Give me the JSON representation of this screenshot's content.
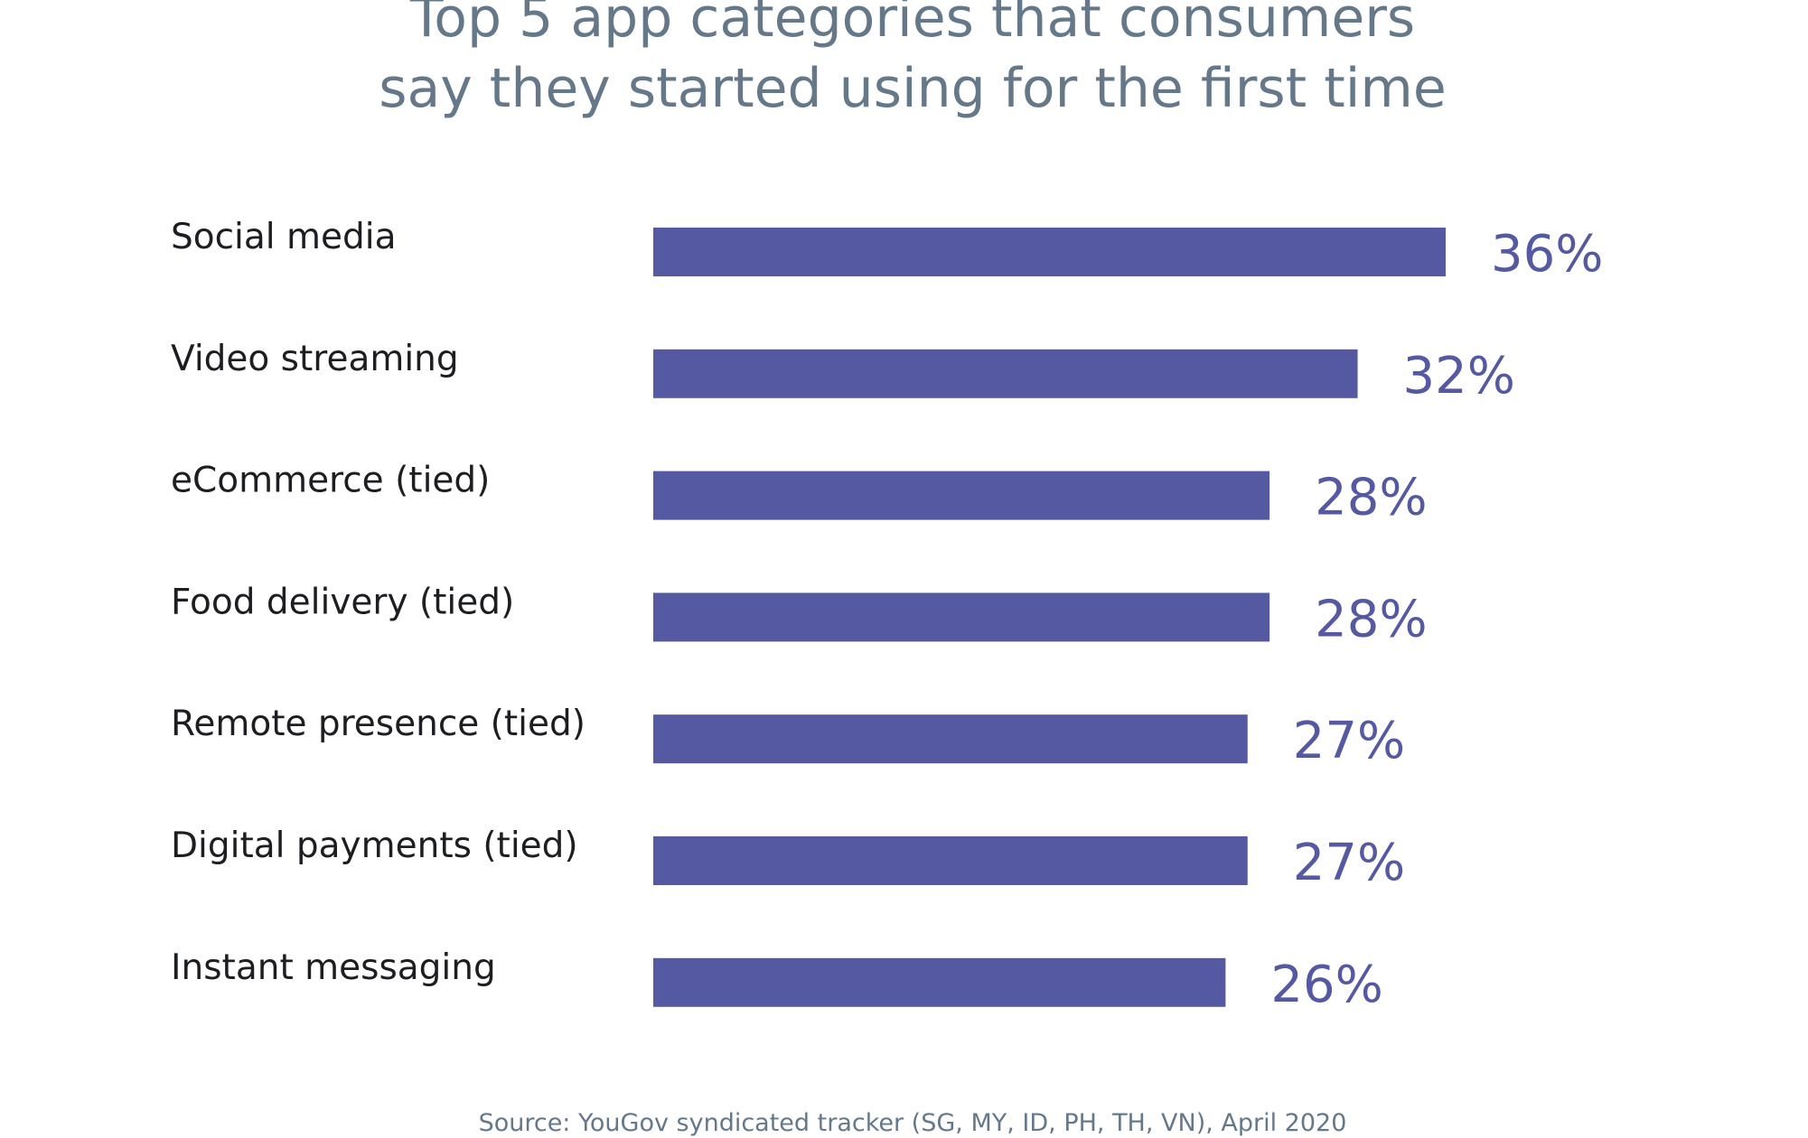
{
  "colors": {
    "bar": "#5559a2",
    "value_label": "#5559a2",
    "title": "#65788a",
    "category_label": "#1c1e21",
    "source": "#65788a",
    "background": "#ffffff"
  },
  "chart_data": {
    "type": "bar",
    "orientation": "horizontal",
    "title_lines": [
      "Top 5 app categories that consumers",
      "say they started using for the first time"
    ],
    "categories": [
      "Social media",
      "Video streaming",
      "eCommerce (tied)",
      "Food delivery (tied)",
      "Remote presence  (tied)",
      "Digital payments (tied)",
      "Instant messaging"
    ],
    "values": [
      36,
      32,
      28,
      28,
      27,
      27,
      26
    ],
    "value_labels": [
      "36%",
      "32%",
      "28%",
      "28%",
      "27%",
      "27%",
      "26%"
    ],
    "unit": "%",
    "xlim": [
      0,
      36
    ],
    "grid": false,
    "legend": "none",
    "source": "Source: YouGov syndicated tracker (SG, MY, ID, PH, TH, VN), April 2020"
  }
}
